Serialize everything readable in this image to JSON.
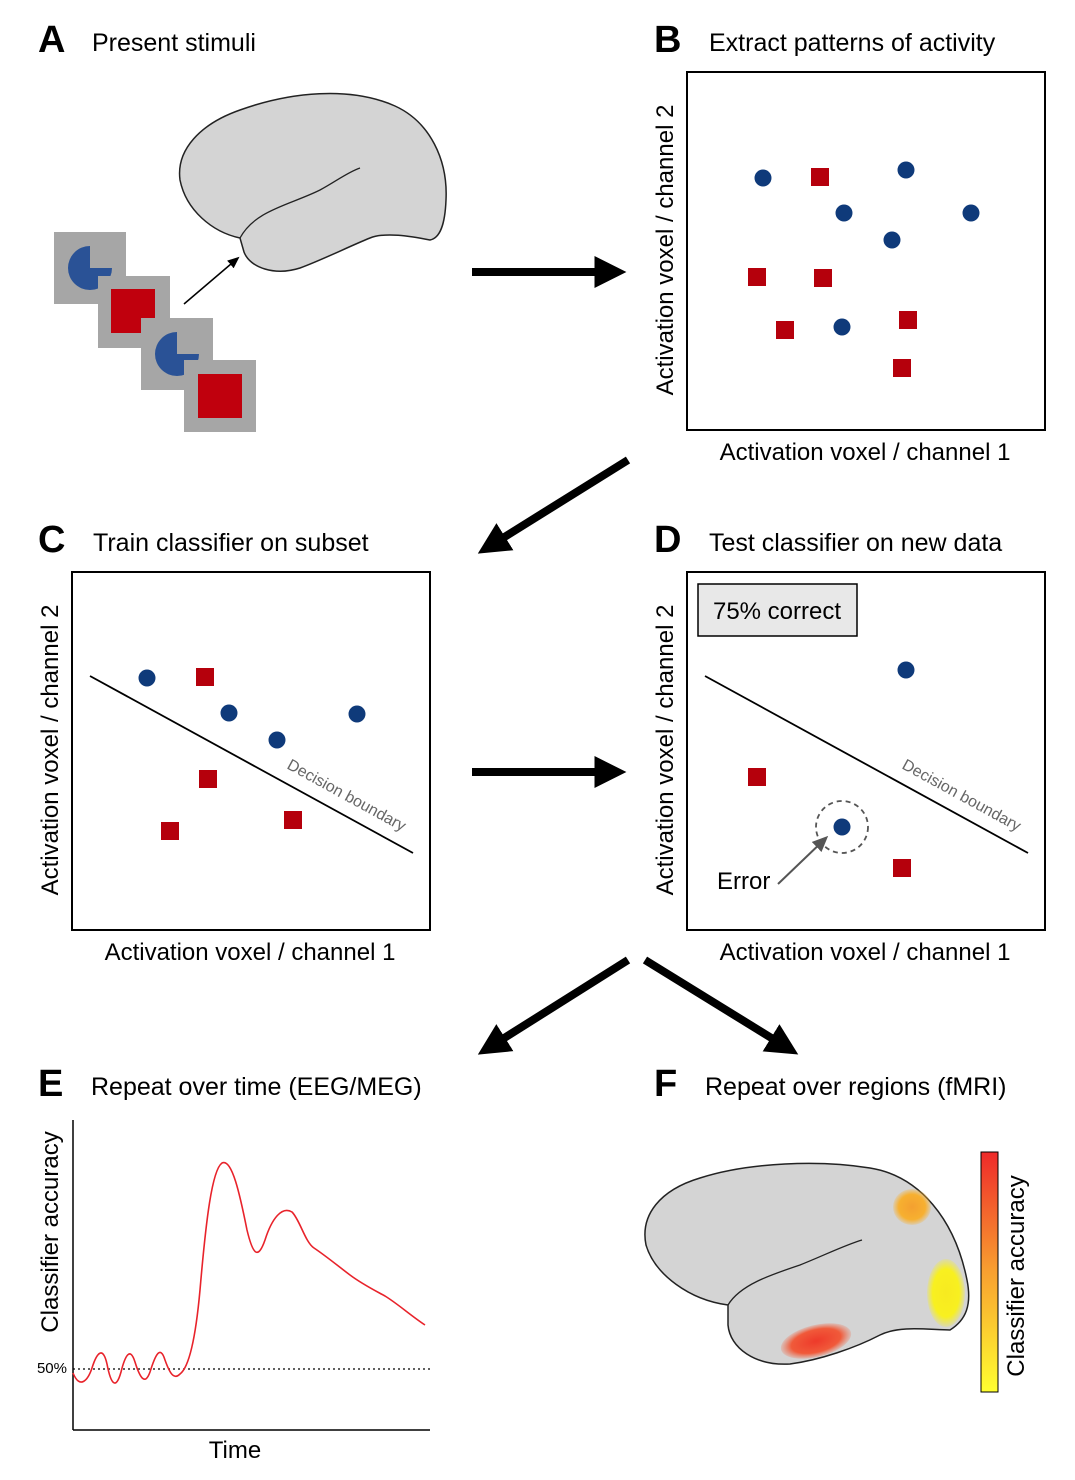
{
  "panels": {
    "a": {
      "label": "A",
      "title": "Present stimuli"
    },
    "b": {
      "label": "B",
      "title": "Extract patterns of activity",
      "xlabel": "Activation voxel / channel 1",
      "ylabel": "Activation voxel / channel 2"
    },
    "c": {
      "label": "C",
      "title": "Train classifier on subset",
      "xlabel": "Activation voxel / channel 1",
      "ylabel": "Activation voxel / channel 2",
      "boundary_label": "Decision boundary"
    },
    "d": {
      "label": "D",
      "title": "Test classifier on new data",
      "xlabel": "Activation voxel / channel 1",
      "ylabel": "Activation voxel / channel 2",
      "boundary_label": "Decision boundary",
      "accuracy_box": "75% correct",
      "error_label": "Error"
    },
    "e": {
      "label": "E",
      "title": "Repeat over time (EEG/MEG)",
      "xlabel": "Time",
      "ylabel": "Classifier accuracy",
      "chance_label": "50%"
    },
    "f": {
      "label": "F",
      "title": "Repeat over regions (fMRI)",
      "colorbar_label": "Classifier accuracy"
    }
  },
  "colors": {
    "circle_class": "#0f3a7a",
    "square_class": "#b5000c",
    "stimulus_circle": "#2a5296",
    "stimulus_square": "#c0000d",
    "stimulus_frame": "#a6a6a6",
    "brain_fill": "#d4d4d4",
    "time_course": "#e8232b",
    "colorbar_low": "#ffff30",
    "colorbar_high": "#ee2a2a"
  }
}
